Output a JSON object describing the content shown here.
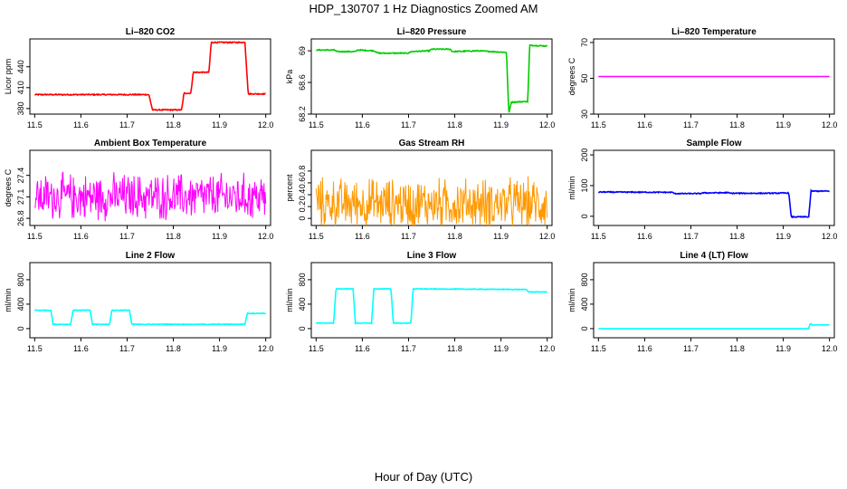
{
  "figure": {
    "title": "HDP_130707  1 Hz Diagnostics Zoomed AM",
    "xlabel": "Hour of Day (UTC)"
  },
  "chart_data": [
    {
      "id": "co2",
      "type": "line",
      "title": "Li–820 CO2",
      "ylabel": "Licor ppm",
      "color": "#ff0000",
      "xlim": [
        11.5,
        12.0
      ],
      "ylim": [
        372,
        480
      ],
      "xticks": [
        "11.5",
        "11.6",
        "11.7",
        "11.8",
        "11.9",
        "12.0"
      ],
      "yticks": [
        380,
        410,
        440
      ],
      "noise": 1.5,
      "segments": [
        [
          11.5,
          400
        ],
        [
          11.747,
          400
        ],
        [
          11.755,
          378
        ],
        [
          11.818,
          378
        ],
        [
          11.823,
          402
        ],
        [
          11.838,
          402
        ],
        [
          11.843,
          432
        ],
        [
          11.877,
          432
        ],
        [
          11.882,
          475
        ],
        [
          11.955,
          475
        ],
        [
          11.962,
          401
        ],
        [
          12.0,
          401
        ]
      ]
    },
    {
      "id": "pressure",
      "type": "line",
      "title": "Li–820 Pressure",
      "ylabel": "kPa",
      "color": "#00cc00",
      "xlim": [
        11.5,
        12.0
      ],
      "ylim": [
        68.2,
        69.15
      ],
      "xticks": [
        "11.5",
        "11.6",
        "11.7",
        "11.8",
        "11.9",
        "12.0"
      ],
      "yticks": [
        68.2,
        68.6,
        69.0
      ],
      "noise": 0.012,
      "segments": [
        [
          11.5,
          69.01
        ],
        [
          11.54,
          69.01
        ],
        [
          11.545,
          68.99
        ],
        [
          11.585,
          68.99
        ],
        [
          11.59,
          69.01
        ],
        [
          11.625,
          69.0
        ],
        [
          11.635,
          68.97
        ],
        [
          11.7,
          68.97
        ],
        [
          11.705,
          68.99
        ],
        [
          11.745,
          69.0
        ],
        [
          11.75,
          69.02
        ],
        [
          11.79,
          69.02
        ],
        [
          11.795,
          68.99
        ],
        [
          11.85,
          69.0
        ],
        [
          11.912,
          68.98
        ],
        [
          11.917,
          68.2
        ],
        [
          11.922,
          68.35
        ],
        [
          11.958,
          68.36
        ],
        [
          11.962,
          69.07
        ],
        [
          12.0,
          69.06
        ]
      ]
    },
    {
      "id": "licor-temp",
      "type": "line",
      "title": "Li–820 Temperature",
      "ylabel": "degrees C",
      "color": "#ff00ff",
      "xlim": [
        11.5,
        12.0
      ],
      "ylim": [
        30,
        72
      ],
      "xticks": [
        "11.5",
        "11.6",
        "11.7",
        "11.8",
        "11.9",
        "12.0"
      ],
      "yticks": [
        30,
        50,
        70
      ],
      "noise": 0,
      "segments": [
        [
          11.5,
          51
        ],
        [
          12.0,
          51
        ]
      ]
    },
    {
      "id": "box-temp",
      "type": "line",
      "title": "Ambient Box Temperature",
      "ylabel": "degrees C",
      "color": "#ff00ff",
      "xlim": [
        11.5,
        12.0
      ],
      "ylim": [
        26.7,
        27.75
      ],
      "xticks": [
        "11.5",
        "11.6",
        "11.7",
        "11.8",
        "11.9",
        "12.0"
      ],
      "yticks": [
        26.8,
        27.1,
        27.4
      ],
      "noise": 0.38,
      "noise_style": "spiky",
      "segments": [
        [
          11.5,
          27.1
        ],
        [
          12.0,
          27.1
        ]
      ]
    },
    {
      "id": "rh",
      "type": "line",
      "title": "Gas Stream RH",
      "ylabel": "percent",
      "color": "#ff9900",
      "xlim": [
        11.5,
        12.0
      ],
      "ylim": [
        -0.12,
        1.15
      ],
      "xticks": [
        "11.5",
        "11.6",
        "11.7",
        "11.8",
        "11.9",
        "12.0"
      ],
      "yticks": [
        0.0,
        0.2,
        0.4,
        0.6,
        0.8
      ],
      "noise": 0.5,
      "noise_style": "spiky",
      "segments": [
        [
          11.5,
          0.25
        ],
        [
          12.0,
          0.25
        ]
      ]
    },
    {
      "id": "sample-flow",
      "type": "line",
      "title": "Sample Flow",
      "ylabel": "ml/min",
      "color": "#0000ff",
      "xlim": [
        11.5,
        12.0
      ],
      "ylim": [
        -30,
        215
      ],
      "xticks": [
        "11.5",
        "11.6",
        "11.7",
        "11.8",
        "11.9",
        "12.0"
      ],
      "yticks": [
        0,
        100,
        200
      ],
      "noise": 3,
      "segments": [
        [
          11.5,
          79
        ],
        [
          11.66,
          78
        ],
        [
          11.665,
          74
        ],
        [
          11.72,
          74
        ],
        [
          11.725,
          76
        ],
        [
          11.78,
          77
        ],
        [
          11.785,
          75
        ],
        [
          11.87,
          75
        ],
        [
          11.912,
          76
        ],
        [
          11.917,
          -2
        ],
        [
          11.955,
          -2
        ],
        [
          11.96,
          82
        ],
        [
          12.0,
          82
        ]
      ]
    },
    {
      "id": "line2-flow",
      "type": "line",
      "title": "Line 2 Flow",
      "ylabel": "ml/min",
      "color": "#00ffff",
      "xlim": [
        11.5,
        12.0
      ],
      "ylim": [
        -150,
        1080
      ],
      "xticks": [
        "11.5",
        "11.6",
        "11.7",
        "11.8",
        "11.9",
        "12.0"
      ],
      "yticks": [
        0,
        400,
        800
      ],
      "noise": 12,
      "segments": [
        [
          11.5,
          300
        ],
        [
          11.535,
          300
        ],
        [
          11.54,
          70
        ],
        [
          11.578,
          70
        ],
        [
          11.583,
          300
        ],
        [
          11.62,
          300
        ],
        [
          11.625,
          70
        ],
        [
          11.662,
          70
        ],
        [
          11.667,
          300
        ],
        [
          11.705,
          300
        ],
        [
          11.71,
          70
        ],
        [
          11.955,
          70
        ],
        [
          11.96,
          250
        ],
        [
          12.0,
          250
        ]
      ]
    },
    {
      "id": "line3-flow",
      "type": "line",
      "title": "Line 3 Flow",
      "ylabel": "ml/min",
      "color": "#00ffff",
      "xlim": [
        11.5,
        12.0
      ],
      "ylim": [
        -150,
        1080
      ],
      "xticks": [
        "11.5",
        "11.6",
        "11.7",
        "11.8",
        "11.9",
        "12.0"
      ],
      "yticks": [
        0,
        400,
        800
      ],
      "noise": 10,
      "segments": [
        [
          11.5,
          90
        ],
        [
          11.538,
          90
        ],
        [
          11.543,
          650
        ],
        [
          11.58,
          650
        ],
        [
          11.585,
          90
        ],
        [
          11.62,
          90
        ],
        [
          11.625,
          650
        ],
        [
          11.662,
          650
        ],
        [
          11.667,
          90
        ],
        [
          11.705,
          90
        ],
        [
          11.71,
          650
        ],
        [
          11.955,
          640
        ],
        [
          11.96,
          600
        ],
        [
          12.0,
          600
        ]
      ]
    },
    {
      "id": "line4-flow",
      "type": "line",
      "title": "Line 4 (LT) Flow",
      "ylabel": "ml/min",
      "color": "#00ffff",
      "xlim": [
        11.5,
        12.0
      ],
      "ylim": [
        -150,
        1080
      ],
      "xticks": [
        "11.5",
        "11.6",
        "11.7",
        "11.8",
        "11.9",
        "12.0"
      ],
      "yticks": [
        0,
        400,
        800
      ],
      "noise": 0,
      "segments": [
        [
          11.5,
          0
        ],
        [
          11.955,
          0
        ],
        [
          11.958,
          80
        ],
        [
          11.96,
          80
        ],
        [
          11.962,
          60
        ],
        [
          12.0,
          60
        ]
      ]
    }
  ]
}
